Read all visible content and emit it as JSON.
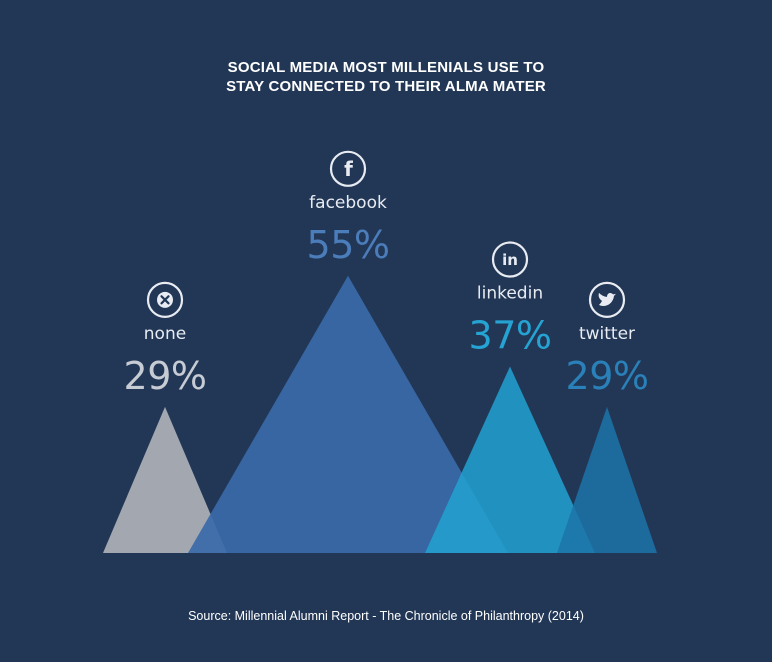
{
  "title_line1": "SOCIAL MEDIA MOST MILLENIALS USE TO",
  "title_line2": "STAY CONNECTED TO THEIR ALMA MATER",
  "source": "Source: Millennial Alumni Report - The Chronicle of Philanthropy (2014)",
  "colors": {
    "background": "#223756",
    "none": "#a3a7b0",
    "facebook": "#3a6aa8",
    "linkedin": "#21a2d1",
    "twitter": "#1c73a8"
  },
  "chart_data": {
    "type": "bar",
    "categories": [
      "none",
      "facebook",
      "linkedin",
      "twitter"
    ],
    "values": [
      29,
      55,
      37,
      29
    ],
    "value_labels": [
      "29%",
      "55%",
      "37%",
      "29%"
    ],
    "icons": [
      "close-icon",
      "facebook-icon",
      "linkedin-icon",
      "twitter-icon"
    ],
    "ylim": [
      0,
      100
    ],
    "grid": false,
    "legend": "none"
  }
}
